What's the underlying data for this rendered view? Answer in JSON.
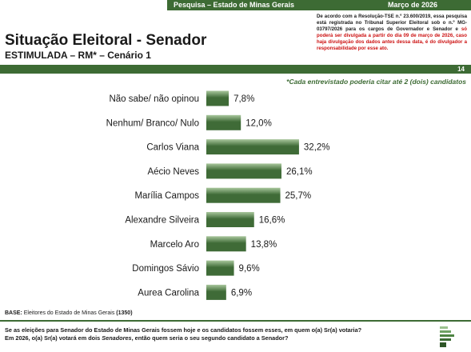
{
  "header": {
    "left": "Pesquisa – Estado de Minas Gerais",
    "right": "Março de 2026"
  },
  "title": "Situação Eleitoral - Senador",
  "subtitle": "ESTIMULADA – RM* – Cenário 1",
  "legal": {
    "text_black": "De acordo com a Resolução-TSE n.º 23.600/2019, essa pesquisa está registrada no Tribunal Superior Eleitoral sob o n.º MG-03797/2026 para os cargos de Governador e Senador e ",
    "text_red": "só poderá ser divulgada a partir do dia 09 de março de 2026, caso haja divulgação dos dados antes dessa data, é do divulgador a responsabilidade por esse ato."
  },
  "page_number": "14",
  "note": "*Cada entrevistado poderia citar até 2 (dois) candidatos",
  "base": {
    "label": "BASE:",
    "text": " Eleitores do Estado de Minas Gerais ",
    "count": "(1350)"
  },
  "question": {
    "line1": "Se as eleições para Senador do Estado de Minas Gerais fossem hoje e os candidatos fossem esses, em quem o(a) Sr(a) votaria?",
    "line2_pre": "Em 2026, o(a) Sr(a) votará em dois ",
    "line2_em": "Senadores",
    "line2_post": ", então quem seria o seu segundo candidato a Senador?"
  },
  "colors": {
    "brand_green": "#3d6b34",
    "bar_dark": "#3f6b37",
    "bar_light": "#a9c79d",
    "alert_red": "#cc1111"
  },
  "logo_icon": "pesquisa-logo-icon",
  "chart_data": {
    "type": "bar",
    "orientation": "horizontal",
    "categories": [
      "Não sabe/ não opinou",
      "Nenhum/ Branco/ Nulo",
      "Carlos Viana",
      "Aécio Neves",
      "Marília Campos",
      "Alexandre Silveira",
      "Marcelo Aro",
      "Domingos Sávio",
      "Aurea Carolina"
    ],
    "values": [
      7.8,
      12.0,
      32.2,
      26.1,
      25.7,
      16.6,
      13.8,
      9.6,
      6.9
    ],
    "value_labels": [
      "7,8%",
      "12,0%",
      "32,2%",
      "26,1%",
      "25,7%",
      "16,6%",
      "13,8%",
      "9,6%",
      "6,9%"
    ],
    "xlim": [
      0,
      100
    ],
    "grid": false,
    "legend": "none"
  }
}
